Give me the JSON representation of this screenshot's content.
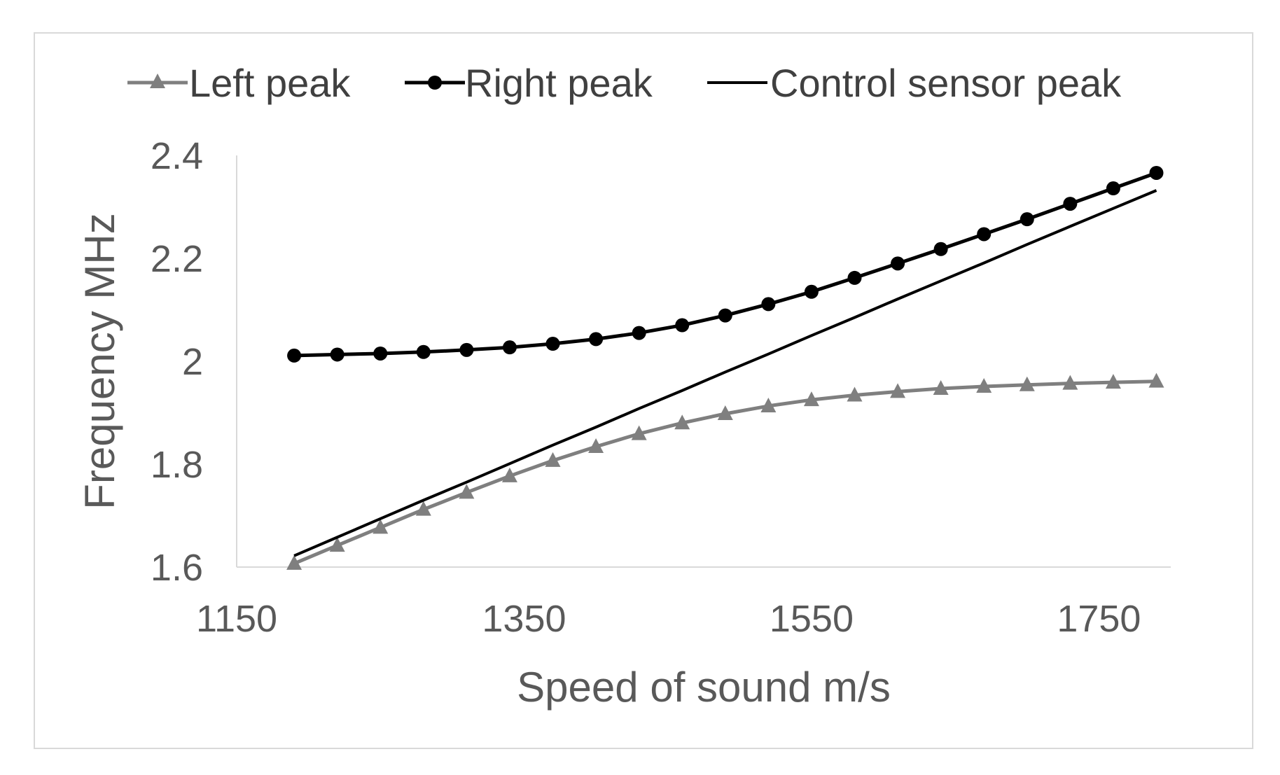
{
  "chart_data": {
    "type": "line",
    "title": "",
    "xlabel": "Speed of sound m/s",
    "ylabel": "Frequency MHz",
    "xlim": [
      1150,
      1800
    ],
    "ylim": [
      1.6,
      2.4
    ],
    "x_ticks": [
      1150,
      1350,
      1550,
      1750
    ],
    "y_ticks": [
      1.6,
      1.8,
      2,
      2.2,
      2.4
    ],
    "y_tick_labels": [
      "1.6",
      "1.8",
      "2",
      "2.2",
      "2.4"
    ],
    "grid": false,
    "legend_position": "top",
    "x": [
      1190,
      1220,
      1250,
      1280,
      1310,
      1340,
      1370,
      1400,
      1430,
      1460,
      1490,
      1520,
      1550,
      1580,
      1610,
      1640,
      1670,
      1700,
      1730,
      1760,
      1790
    ],
    "series": [
      {
        "name": "Left peak",
        "color": "#7f7f7f",
        "marker": "triangle",
        "values": [
          1.607,
          1.642,
          1.677,
          1.712,
          1.745,
          1.777,
          1.807,
          1.834,
          1.859,
          1.88,
          1.898,
          1.913,
          1.925,
          1.934,
          1.941,
          1.947,
          1.951,
          1.954,
          1.957,
          1.959,
          1.961
        ]
      },
      {
        "name": "Right peak",
        "color": "#000000",
        "marker": "circle",
        "values": [
          2.011,
          2.013,
          2.015,
          2.018,
          2.022,
          2.027,
          2.034,
          2.043,
          2.055,
          2.07,
          2.089,
          2.111,
          2.135,
          2.162,
          2.19,
          2.218,
          2.247,
          2.276,
          2.306,
          2.336,
          2.366
        ]
      },
      {
        "name": "Control sensor peak",
        "color": "#000000",
        "marker": "none",
        "values": [
          1.622,
          1.658,
          1.694,
          1.73,
          1.765,
          1.801,
          1.837,
          1.872,
          1.908,
          1.943,
          1.979,
          2.014,
          2.05,
          2.085,
          2.121,
          2.156,
          2.191,
          2.227,
          2.262,
          2.297,
          2.332
        ]
      }
    ]
  }
}
